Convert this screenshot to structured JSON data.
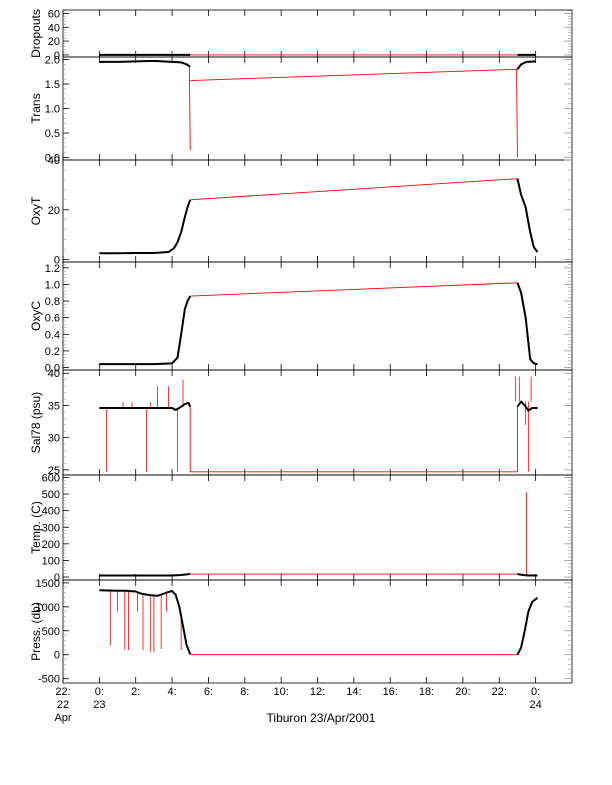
{
  "title": "",
  "caption": "Tiburon 23/Apr/2001",
  "colors": {
    "data": "#000000",
    "interp": "#ff0000",
    "axis": "#000000",
    "minor": "#9a9a9a"
  },
  "chart_data": {
    "type": "line",
    "x_unit": "hours since 23/Apr/2001 00:00",
    "xlim": [
      -2,
      26
    ],
    "x_ticks": [
      {
        "value": -2,
        "lines": [
          "22:",
          "22",
          "Apr"
        ]
      },
      {
        "value": 0,
        "lines": [
          "0:",
          "23"
        ]
      },
      {
        "value": 2,
        "lines": [
          "2:"
        ]
      },
      {
        "value": 4,
        "lines": [
          "4:"
        ]
      },
      {
        "value": 6,
        "lines": [
          "6:"
        ]
      },
      {
        "value": 8,
        "lines": [
          "8:"
        ]
      },
      {
        "value": 10,
        "lines": [
          "10:"
        ]
      },
      {
        "value": 12,
        "lines": [
          "12:"
        ]
      },
      {
        "value": 14,
        "lines": [
          "14:"
        ]
      },
      {
        "value": 16,
        "lines": [
          "16:"
        ]
      },
      {
        "value": 18,
        "lines": [
          "18:"
        ]
      },
      {
        "value": 20,
        "lines": [
          "20:"
        ]
      },
      {
        "value": 22,
        "lines": [
          "22:"
        ]
      },
      {
        "value": 24,
        "lines": [
          "0:",
          "24"
        ]
      }
    ],
    "panels": [
      {
        "ylabel": "Dropouts",
        "ylim": [
          -3,
          65
        ],
        "yticks": [
          0,
          20,
          40,
          60
        ],
        "series": [
          {
            "name": "",
            "style": "data",
            "x": [
              0,
              1,
              2,
              3,
              4,
              5.0
            ],
            "y": [
              0,
              0,
              0,
              0,
              0,
              0
            ]
          },
          {
            "name": "",
            "style": "interp",
            "x": [
              5.0,
              23.0
            ],
            "y": [
              0,
              0
            ]
          },
          {
            "name": "",
            "style": "data",
            "x": [
              23.0,
              23.5,
              24.0
            ],
            "y": [
              0,
              0,
              0
            ]
          }
        ],
        "spikes": []
      },
      {
        "ylabel": "Trans",
        "ylim": [
          -0.05,
          2.05
        ],
        "yticks": [
          0.0,
          0.5,
          1.0,
          1.5,
          2.0
        ],
        "series": [
          {
            "name": "",
            "style": "data",
            "x": [
              0,
              0.5,
              1.0,
              2.0,
              3.0,
              4.0,
              4.5,
              4.8,
              5.0
            ],
            "y": [
              1.95,
              1.95,
              1.95,
              1.96,
              1.97,
              1.95,
              1.94,
              1.9,
              1.85
            ]
          },
          {
            "name": "",
            "style": "interp",
            "x": [
              4.95,
              5.0
            ],
            "y": [
              1.85,
              0.15
            ]
          },
          {
            "name": "",
            "style": "interp",
            "x": [
              5.0,
              23.0
            ],
            "y": [
              1.57,
              1.8
            ]
          },
          {
            "name": "",
            "style": "interp",
            "x": [
              22.95,
              23.0
            ],
            "y": [
              1.8,
              0.0
            ]
          },
          {
            "name": "",
            "style": "data",
            "x": [
              23.0,
              23.2,
              23.5,
              24.0
            ],
            "y": [
              1.8,
              1.9,
              1.95,
              1.96
            ]
          }
        ],
        "spikes": []
      },
      {
        "ylabel": "OxyT",
        "ylim": [
          -1,
          40
        ],
        "yticks": [
          0,
          20,
          40
        ],
        "series": [
          {
            "name": "",
            "style": "data",
            "x": [
              0,
              1,
              2,
              3,
              3.8,
              4.1,
              4.3,
              4.5,
              4.7,
              4.85,
              5.0
            ],
            "y": [
              2.5,
              2.5,
              2.6,
              2.6,
              3.0,
              4.5,
              7.0,
              11.0,
              17.0,
              21.0,
              24.0
            ]
          },
          {
            "name": "",
            "style": "interp",
            "x": [
              5.0,
              23.0
            ],
            "y": [
              24.0,
              32.5
            ]
          },
          {
            "name": "",
            "style": "data",
            "x": [
              23.0,
              23.2,
              23.45,
              23.7,
              23.9,
              24.1
            ],
            "y": [
              32.5,
              26.0,
              21.0,
              11.0,
              5.0,
              3.0
            ]
          }
        ],
        "spikes": []
      },
      {
        "ylabel": "OxyC",
        "ylim": [
          -0.03,
          1.27
        ],
        "yticks": [
          0.0,
          0.2,
          0.4,
          0.6,
          0.8,
          1.0,
          1.2
        ],
        "series": [
          {
            "name": "",
            "style": "data",
            "x": [
              0,
              1,
              2,
              3,
              4,
              4.3,
              4.5,
              4.7,
              4.85,
              5.0
            ],
            "y": [
              0.04,
              0.04,
              0.04,
              0.04,
              0.05,
              0.12,
              0.4,
              0.7,
              0.8,
              0.86
            ]
          },
          {
            "name": "",
            "style": "interp",
            "x": [
              5.0,
              23.0
            ],
            "y": [
              0.86,
              1.02
            ]
          },
          {
            "name": "",
            "style": "data",
            "x": [
              23.0,
              23.2,
              23.45,
              23.7,
              23.9,
              24.1
            ],
            "y": [
              1.02,
              0.9,
              0.6,
              0.1,
              0.05,
              0.04
            ]
          }
        ],
        "spikes": []
      },
      {
        "ylabel": "Sal78 (psu)",
        "ylim": [
          24.2,
          40.5
        ],
        "yticks": [
          25,
          30,
          35,
          40
        ],
        "series": [
          {
            "name": "",
            "style": "data",
            "x": [
              0,
              1,
              2,
              3,
              4,
              4.2,
              4.5,
              4.7,
              4.9,
              5.0
            ],
            "y": [
              34.6,
              34.6,
              34.6,
              34.6,
              34.6,
              34.3,
              34.8,
              35.2,
              35.4,
              34.8
            ]
          },
          {
            "name": "",
            "style": "interp",
            "x": [
              5.0,
              5.0,
              23.0,
              23.0
            ],
            "y": [
              34.8,
              24.7,
              24.7,
              34.8
            ]
          },
          {
            "name": "",
            "style": "data",
            "x": [
              23.0,
              23.2,
              23.4,
              23.6,
              23.8,
              24.0,
              24.1
            ],
            "y": [
              34.8,
              35.6,
              35.0,
              34.2,
              34.6,
              34.6,
              34.6
            ]
          }
        ],
        "spikes": [
          {
            "x": 0.4,
            "y": 24.7
          },
          {
            "x": 1.3,
            "y": 35.5
          },
          {
            "x": 1.8,
            "y": 35.5
          },
          {
            "x": 2.6,
            "y": 24.7
          },
          {
            "x": 2.8,
            "y": 35.5
          },
          {
            "x": 3.2,
            "y": 38.0
          },
          {
            "x": 3.8,
            "y": 38.0
          },
          {
            "x": 4.3,
            "y": 24.7
          },
          {
            "x": 4.6,
            "y": 39.0
          },
          {
            "x": 22.9,
            "y": 39.5
          },
          {
            "x": 23.1,
            "y": 39.5
          },
          {
            "x": 23.45,
            "y": 32.0
          },
          {
            "x": 23.6,
            "y": 24.7
          },
          {
            "x": 23.75,
            "y": 39.5
          }
        ]
      },
      {
        "ylabel": "Temp. (C)",
        "ylim": [
          -18,
          615
        ],
        "yticks": [
          0,
          100,
          200,
          300,
          400,
          500,
          600
        ],
        "series": [
          {
            "name": "",
            "style": "data",
            "x": [
              0,
              1,
              2,
              3,
              4,
              4.5,
              5.0
            ],
            "y": [
              9,
              9,
              9,
              9,
              9,
              12,
              18
            ]
          },
          {
            "name": "",
            "style": "interp",
            "x": [
              5.0,
              23.0
            ],
            "y": [
              18,
              18
            ]
          },
          {
            "name": "",
            "style": "data",
            "x": [
              23.0,
              23.3,
              23.6,
              24.0,
              24.1
            ],
            "y": [
              18,
              12,
              9,
              9,
              9
            ]
          }
        ],
        "spikes": [
          {
            "x": 23.5,
            "y": 510
          }
        ]
      },
      {
        "ylabel": "Press. (db)",
        "ylim": [
          -590,
          1560
        ],
        "yticks": [
          -500,
          0,
          500,
          1000,
          1500
        ],
        "series": [
          {
            "name": "",
            "style": "data",
            "x": [
              0,
              0.5,
              1.0,
              1.5,
              2.0,
              2.3,
              2.6,
              2.9,
              3.2,
              3.5,
              3.8,
              4.0,
              4.2,
              4.4,
              4.6,
              4.8,
              5.0
            ],
            "y": [
              1345,
              1340,
              1335,
              1335,
              1320,
              1275,
              1255,
              1240,
              1230,
              1270,
              1310,
              1330,
              1250,
              1000,
              600,
              200,
              10
            ]
          },
          {
            "name": "",
            "style": "interp",
            "x": [
              5.0,
              23.0
            ],
            "y": [
              0,
              0
            ]
          },
          {
            "name": "",
            "style": "data",
            "x": [
              23.0,
              23.2,
              23.4,
              23.6,
              23.8,
              24.0,
              24.1
            ],
            "y": [
              0,
              150,
              500,
              900,
              1100,
              1160,
              1190
            ]
          }
        ],
        "spikes": [
          {
            "x": 0.6,
            "y": 200
          },
          {
            "x": 1.0,
            "y": 900
          },
          {
            "x": 1.4,
            "y": 100
          },
          {
            "x": 1.6,
            "y": 100
          },
          {
            "x": 2.1,
            "y": 900
          },
          {
            "x": 2.4,
            "y": 100
          },
          {
            "x": 2.8,
            "y": 50
          },
          {
            "x": 3.0,
            "y": 50
          },
          {
            "x": 3.4,
            "y": 120
          },
          {
            "x": 3.7,
            "y": 900
          },
          {
            "x": 4.5,
            "y": 100
          }
        ]
      }
    ]
  }
}
